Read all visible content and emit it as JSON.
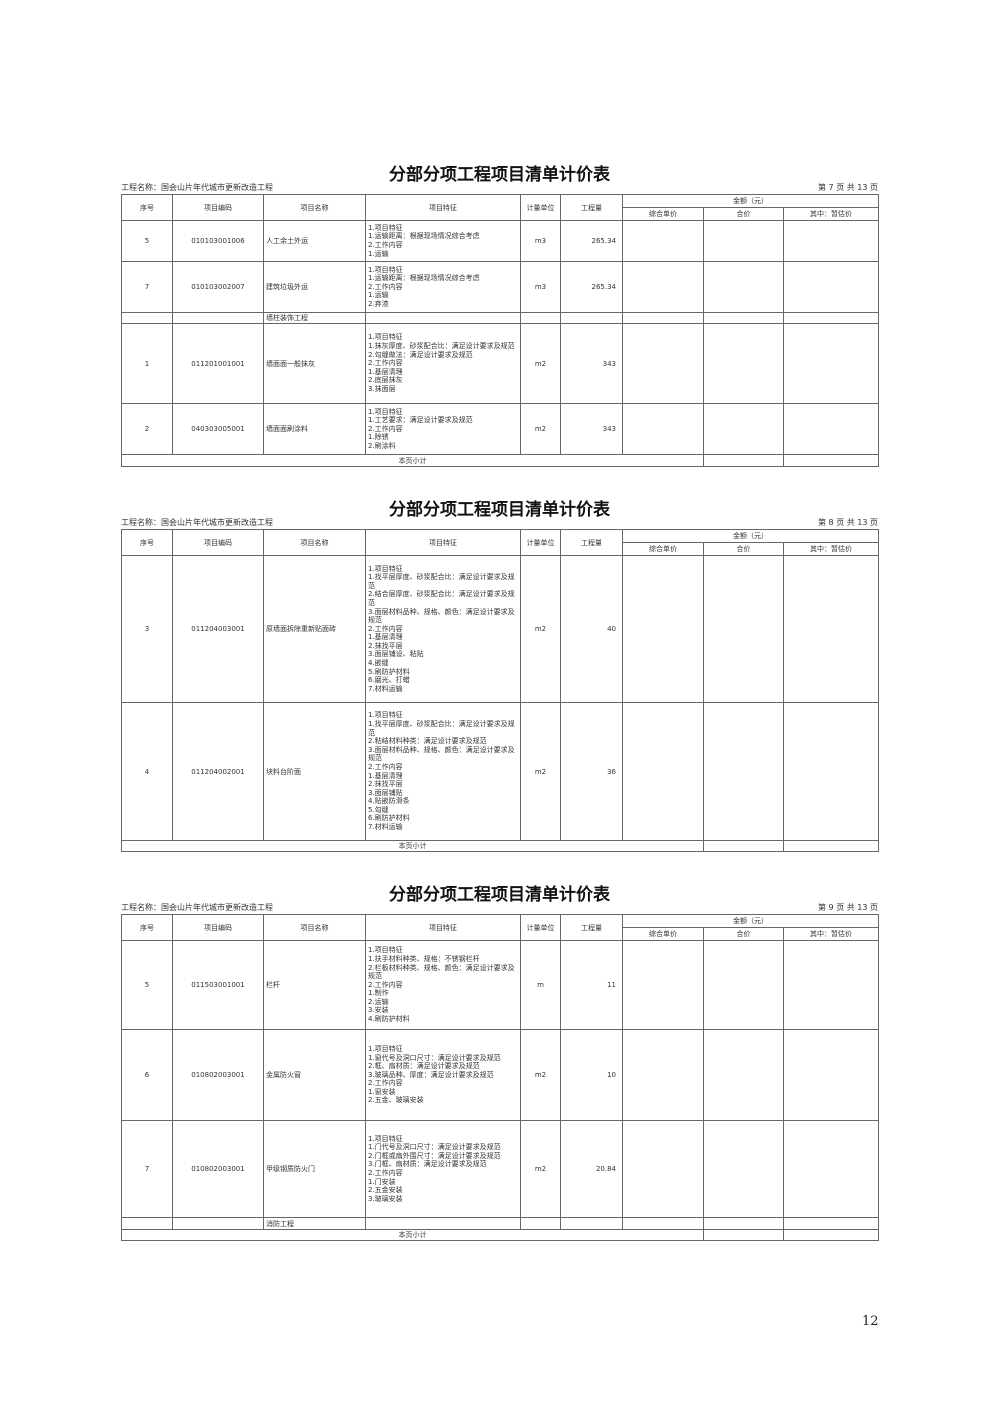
{
  "headers": {
    "seq": "序号",
    "code": "项目编码",
    "name": "项目名称",
    "feature": "项目特征",
    "unit": "计量单位",
    "qty": "工程量",
    "amount": "金额（元）",
    "unit_price": "综合单价",
    "total": "合价",
    "provisional": "其中：暂估价"
  },
  "sheets": [
    {
      "title": "分部分项工程项目清单计价表",
      "project": "工程名称：国会山片年代城市更新改造工程",
      "page": "第 7 页 共 13 页",
      "subtotal": "本页小计",
      "rows": [
        {
          "seq": "5",
          "code": "010103001006",
          "name": "人工余土外运",
          "feature": "1.项目特征\n1.运输距离：根据现场情况综合考虑\n2.工作内容\n1.运输",
          "unit": "m3",
          "qty": "265.34"
        },
        {
          "seq": "7",
          "code": "010103002007",
          "name": "建筑垃圾外运",
          "feature": "1.项目特征\n1.运输距离：根据现场情况综合考虑\n2.工作内容\n1.运输\n2.弃渣",
          "unit": "m3",
          "qty": "265.34"
        },
        {
          "section": "墙柱装饰工程"
        },
        {
          "seq": "1",
          "code": "011201001001",
          "name": "墙面面一般抹灰",
          "feature": "1.项目特征\n1.抹灰厚度、砂浆配合比：满足设计要求及规范\n2.勾缝做法：满足设计要求及规范\n2.工作内容\n1.基层清理\n2.底层抹灰\n3.抹面层",
          "unit": "m2",
          "qty": "343"
        },
        {
          "seq": "2",
          "code": "040303005001",
          "name": "墙面面刷涂料",
          "feature": "1.项目特征\n1.工艺要求：满足设计要求及规范\n2.工作内容\n1.除锈\n2.刷涂料",
          "unit": "m2",
          "qty": "343"
        }
      ]
    },
    {
      "title": "分部分项工程项目清单计价表",
      "project": "工程名称：国会山片年代城市更新改造工程",
      "page": "第 8 页 共 13 页",
      "subtotal": "本页小计",
      "rows": [
        {
          "seq": "3",
          "code": "011204003001",
          "name": "原墙面拆除重新贴面砖",
          "feature": "1.项目特征\n1.找平层厚度、砂浆配合比：满足设计要求及规范\n2.结合层厚度、砂浆配合比：满足设计要求及规范\n3.面层材料品种、规格、颜色：满足设计要求及规范\n2.工作内容\n1.基层清理\n2.抹找平层\n3.面层铺设、粘贴\n4.嵌缝\n5.刷防护材料\n6.磨光、打蜡\n7.材料运输",
          "unit": "m2",
          "qty": "40"
        },
        {
          "seq": "4",
          "code": "011204002001",
          "name": "块料台阶面",
          "feature": "1.项目特征\n1.找平层厚度、砂浆配合比：满足设计要求及规范\n2.粘结材料种类：满足设计要求及规范\n3.面层材料品种、规格、颜色：满足设计要求及规范\n2.工作内容\n1.基层清理\n2.抹找平层\n3.面层铺贴\n4.贴嵌防滑条\n5.勾缝\n6.刷防护材料\n7.材料运输",
          "unit": "m2",
          "qty": "36"
        }
      ]
    },
    {
      "title": "分部分项工程项目清单计价表",
      "project": "工程名称：国会山片年代城市更新改造工程",
      "page": "第 9 页 共 13 页",
      "subtotal": "本页小计",
      "rows": [
        {
          "seq": "5",
          "code": "011503001001",
          "name": "栏杆",
          "feature": "1.项目特征\n1.扶手材料种类、规格：不锈钢栏杆\n2.栏板材料种类、规格、颜色：满足设计要求及规范\n2.工作内容\n1.制作\n2.运输\n3.安装\n4.刷防护材料",
          "unit": "m",
          "qty": "11"
        },
        {
          "seq": "6",
          "code": "010802003001",
          "name": "金属防火窗",
          "feature": "1.项目特征\n1.窗代号及洞口尺寸：满足设计要求及规范\n2.框、扇材质：满足设计要求及规范\n3.玻璃品种、厚度：满足设计要求及规范\n2.工作内容\n1.窗安装\n2.五金、玻璃安装",
          "unit": "m2",
          "qty": "10"
        },
        {
          "seq": "7",
          "code": "010802003001",
          "name": "甲级钢质防火门",
          "feature": "1.项目特征\n1.门代号及洞口尺寸：满足设计要求及规范\n2.门框或扇外围尺寸：满足设计要求及规范\n3.门框、扇材质：满足设计要求及规范\n2.工作内容\n1.门安装\n2.五金安装\n3.玻璃安装",
          "unit": "m2",
          "qty": "20.84"
        },
        {
          "section": "消防工程"
        }
      ]
    }
  ],
  "page_number": "12"
}
